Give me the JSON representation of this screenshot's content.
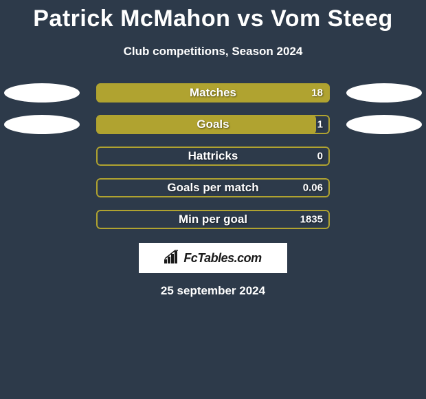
{
  "title": "Patrick McMahon vs Vom Steeg",
  "subtitle": "Club competitions, Season 2024",
  "date": "25 september 2024",
  "logo_text": "FcTables.com",
  "background_color": "#2d3a4a",
  "text_color": "#ffffff",
  "label_fontsize": 17,
  "title_fontsize": 34,
  "stats": [
    {
      "label": "Matches",
      "value": "18",
      "fill_percent": 100,
      "fill_side": "full",
      "fill_color": "#b0a330",
      "border_color": "#b0a330",
      "left_ellipse": true,
      "right_ellipse": true,
      "ellipse_color": "#ffffff"
    },
    {
      "label": "Goals",
      "value": "1",
      "fill_percent": 94,
      "fill_side": "left",
      "fill_color": "#b0a330",
      "border_color": "#b0a330",
      "left_ellipse": true,
      "right_ellipse": true,
      "ellipse_color": "#ffffff"
    },
    {
      "label": "Hattricks",
      "value": "0",
      "fill_percent": 0,
      "fill_side": "none",
      "fill_color": "#b0a330",
      "border_color": "#b0a330",
      "left_ellipse": false,
      "right_ellipse": false,
      "ellipse_color": "#ffffff"
    },
    {
      "label": "Goals per match",
      "value": "0.06",
      "fill_percent": 0,
      "fill_side": "none",
      "fill_color": "#b0a330",
      "border_color": "#b0a330",
      "left_ellipse": false,
      "right_ellipse": false,
      "ellipse_color": "#ffffff"
    },
    {
      "label": "Min per goal",
      "value": "1835",
      "fill_percent": 0,
      "fill_side": "none",
      "fill_color": "#b0a330",
      "border_color": "#b0a330",
      "left_ellipse": false,
      "right_ellipse": false,
      "ellipse_color": "#ffffff"
    }
  ]
}
